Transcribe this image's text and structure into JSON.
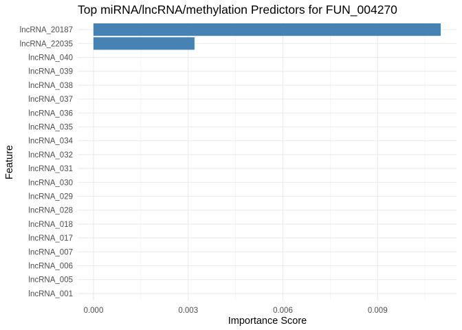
{
  "chart_data": {
    "type": "bar",
    "orientation": "horizontal",
    "title": "Top miRNA/lncRNA/methylation Predictors for FUN_004270",
    "xlabel": "Importance Score",
    "ylabel": "Feature",
    "categories": [
      "lncRNA_20187",
      "lncRNA_22035",
      "lncRNA_040",
      "lncRNA_039",
      "lncRNA_038",
      "lncRNA_037",
      "lncRNA_036",
      "lncRNA_035",
      "lncRNA_034",
      "lncRNA_032",
      "lncRNA_031",
      "lncRNA_030",
      "lncRNA_029",
      "lncRNA_028",
      "lncRNA_018",
      "lncRNA_017",
      "lncRNA_007",
      "lncRNA_006",
      "lncRNA_005",
      "lncRNA_001"
    ],
    "values": [
      0.011,
      0.0032,
      0,
      0,
      0,
      0,
      0,
      0,
      0,
      0,
      0,
      0,
      0,
      0,
      0,
      0,
      0,
      0,
      0,
      0
    ],
    "xlim": [
      -0.0005,
      0.0115
    ],
    "xticks": [
      0.0,
      0.003,
      0.006,
      0.009
    ],
    "xtick_labels": [
      "0.000",
      "0.003",
      "0.006",
      "0.009"
    ],
    "bar_color": "#4682b4",
    "grid": true
  }
}
